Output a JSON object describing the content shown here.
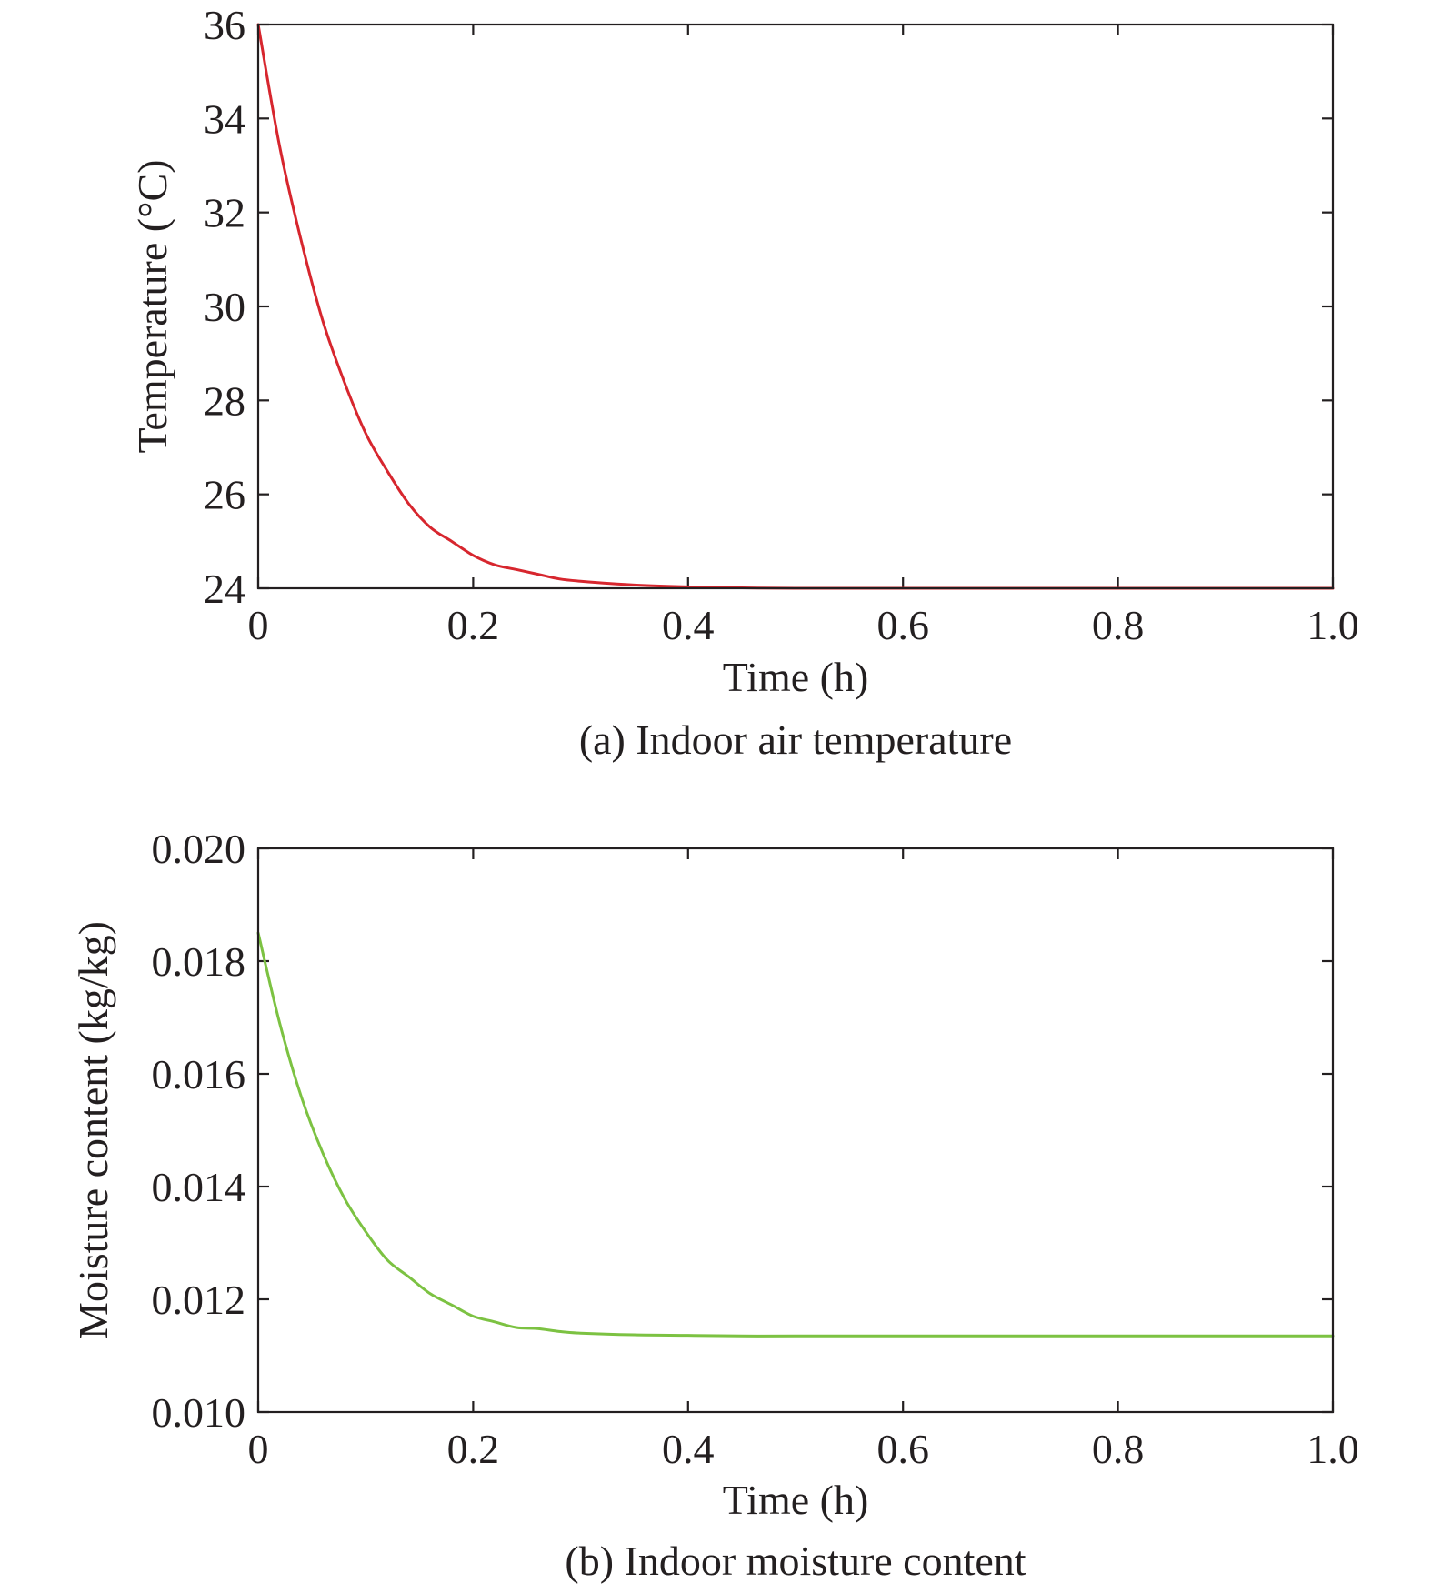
{
  "chart_data": [
    {
      "type": "line",
      "caption": "(a) Indoor air temperature",
      "xlabel": "Time (h)",
      "ylabel": "Temperature (°C)",
      "xlim": [
        0,
        1.0
      ],
      "ylim": [
        24,
        36
      ],
      "x_ticks": [
        "0",
        "0.2",
        "0.4",
        "0.6",
        "0.8",
        "1.0"
      ],
      "y_ticks": [
        "24",
        "26",
        "28",
        "30",
        "32",
        "34",
        "36"
      ],
      "grid": false,
      "series": [
        {
          "color": "#d7262e",
          "x": [
            0,
            0.02,
            0.04,
            0.06,
            0.08,
            0.1,
            0.12,
            0.14,
            0.16,
            0.18,
            0.2,
            0.22,
            0.24,
            0.26,
            0.28,
            0.3,
            0.35,
            0.4,
            0.45,
            0.5,
            0.6,
            0.7,
            0.8,
            0.9,
            1.0
          ],
          "y": [
            36.0,
            33.4,
            31.4,
            29.7,
            28.4,
            27.3,
            26.5,
            25.8,
            25.3,
            25.0,
            24.7,
            24.5,
            24.4,
            24.3,
            24.2,
            24.15,
            24.07,
            24.03,
            24.01,
            24.0,
            24.0,
            24.0,
            24.0,
            24.0,
            24.0
          ]
        }
      ]
    },
    {
      "type": "line",
      "caption": "(b) Indoor moisture content",
      "xlabel": "Time (h)",
      "ylabel": "Moisture content (kg/kg)",
      "xlim": [
        0,
        1.0
      ],
      "ylim": [
        0.01,
        0.02
      ],
      "x_ticks": [
        "0",
        "0.2",
        "0.4",
        "0.6",
        "0.8",
        "1.0"
      ],
      "y_ticks": [
        "0.010",
        "0.012",
        "0.014",
        "0.016",
        "0.018",
        "0.020"
      ],
      "grid": false,
      "series": [
        {
          "color": "#7cc242",
          "x": [
            0,
            0.02,
            0.04,
            0.06,
            0.08,
            0.1,
            0.12,
            0.14,
            0.16,
            0.18,
            0.2,
            0.22,
            0.24,
            0.26,
            0.28,
            0.3,
            0.35,
            0.4,
            0.45,
            0.5,
            0.6,
            0.7,
            0.8,
            0.9,
            1.0
          ],
          "y": [
            0.0185,
            0.0169,
            0.0156,
            0.0146,
            0.0138,
            0.0132,
            0.0127,
            0.0124,
            0.0121,
            0.0119,
            0.0117,
            0.0116,
            0.0115,
            0.01148,
            0.01143,
            0.0114,
            0.01137,
            0.01136,
            0.01135,
            0.01135,
            0.01135,
            0.01135,
            0.01135,
            0.01135,
            0.01135
          ]
        }
      ]
    }
  ]
}
